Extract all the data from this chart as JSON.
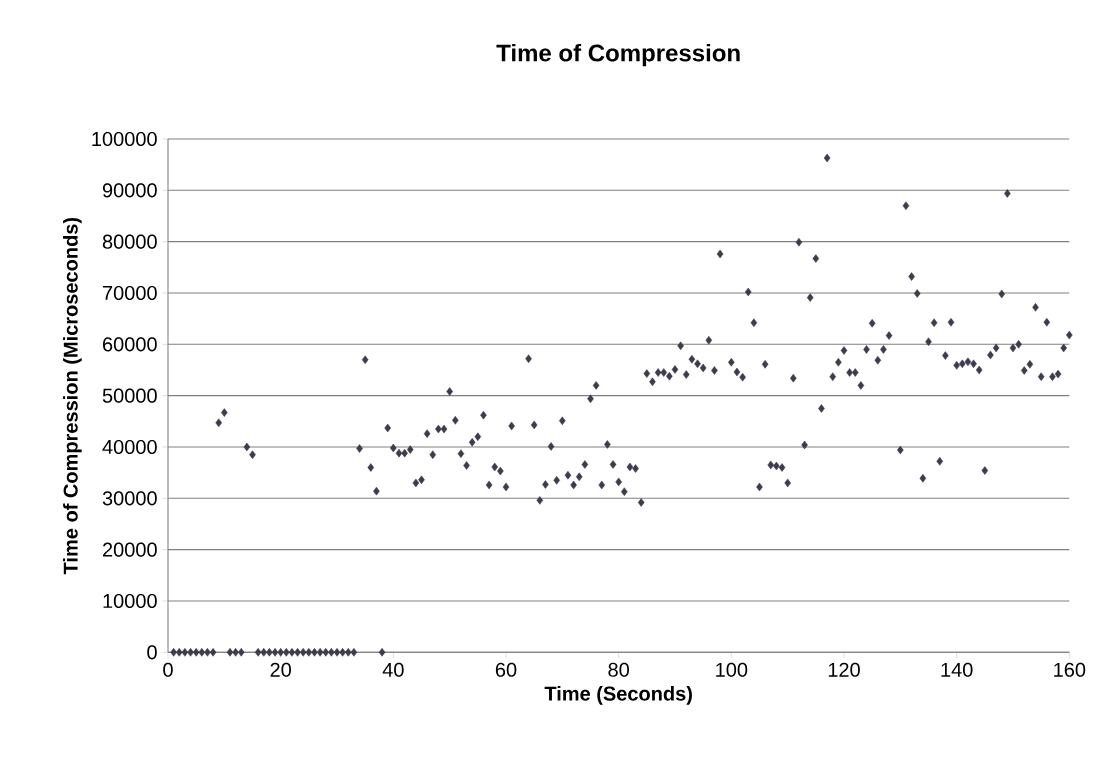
{
  "chart_data": {
    "type": "scatter",
    "title": "Time of Compression",
    "xlabel": "Time (Seconds)",
    "ylabel": "Time of Compression (Microseconds)",
    "xlim": [
      0,
      160
    ],
    "xticks": [
      0,
      20,
      40,
      60,
      80,
      100,
      120,
      140,
      160
    ],
    "ylim": [
      0,
      100000
    ],
    "yticks": [
      0,
      10000,
      20000,
      30000,
      40000,
      50000,
      60000,
      70000,
      80000,
      90000,
      100000
    ],
    "grid": "y",
    "marker": "diamond",
    "series": [
      {
        "color": "#3c3c4c",
        "x": [
          1,
          2,
          3,
          4,
          5,
          6,
          7,
          8,
          9,
          10,
          11,
          12,
          13,
          14,
          15,
          16,
          17,
          18,
          19,
          20,
          21,
          22,
          23,
          24,
          25,
          26,
          27,
          28,
          29,
          30,
          31,
          32,
          33,
          34,
          35,
          36,
          37,
          38,
          39,
          40,
          41,
          42,
          43,
          44,
          45,
          46,
          47,
          48,
          49,
          50,
          51,
          52,
          53,
          54,
          55,
          56,
          57,
          58,
          59,
          60,
          61,
          64,
          65,
          66,
          67,
          68,
          69,
          70,
          71,
          72,
          73,
          74,
          75,
          76,
          77,
          78,
          79,
          80,
          81,
          82,
          83,
          84,
          85,
          86,
          87,
          88,
          89,
          90,
          91,
          92,
          93,
          94,
          95,
          96,
          97,
          98,
          100,
          101,
          102,
          103,
          104,
          105,
          106,
          107,
          108,
          109,
          110,
          111,
          112,
          113,
          114,
          115,
          116,
          117,
          118,
          119,
          120,
          121,
          122,
          123,
          124,
          125,
          126,
          127,
          128,
          130,
          131,
          132,
          133,
          134,
          135,
          136,
          137,
          138,
          139,
          140,
          141,
          142,
          143,
          144,
          145,
          146,
          147,
          148,
          149,
          150,
          151,
          152,
          153,
          154,
          155,
          156,
          157,
          158,
          159,
          160
        ],
        "values": [
          0,
          0,
          0,
          0,
          0,
          0,
          0,
          0,
          44700,
          46700,
          0,
          0,
          0,
          40000,
          38500,
          0,
          0,
          0,
          0,
          0,
          0,
          0,
          0,
          0,
          0,
          0,
          0,
          0,
          0,
          0,
          0,
          0,
          0,
          39700,
          57000,
          36000,
          31400,
          0,
          43700,
          39800,
          38800,
          38800,
          39500,
          33000,
          33600,
          42600,
          38500,
          43500,
          43500,
          50800,
          45200,
          38700,
          36400,
          40900,
          42000,
          46200,
          32600,
          36100,
          35300,
          32200,
          44100,
          57200,
          44300,
          29600,
          32700,
          40100,
          33500,
          45100,
          34500,
          32600,
          34200,
          36600,
          49400,
          52000,
          32600,
          40500,
          36600,
          33200,
          31300,
          36100,
          35800,
          29200,
          54300,
          52700,
          54500,
          54500,
          53800,
          55100,
          59700,
          54100,
          57100,
          56200,
          55400,
          60800,
          54900,
          77600,
          56500,
          54600,
          53600,
          70200,
          64200,
          32200,
          56100,
          36500,
          36300,
          36000,
          33000,
          53400,
          79900,
          40400,
          69100,
          76700,
          47500,
          96300,
          53700,
          56500,
          58800,
          54500,
          54500,
          52000,
          59000,
          64100,
          56900,
          59000,
          61700,
          39400,
          87000,
          73200,
          69900,
          33900,
          60500,
          64200,
          37200,
          57800,
          64300,
          55900,
          56200,
          56600,
          56200,
          55000,
          35400,
          57900,
          59300,
          69800,
          89400,
          59300,
          60000,
          54900,
          56100,
          67200,
          53700,
          64300,
          53700,
          54200,
          59300,
          61800
        ]
      }
    ]
  }
}
